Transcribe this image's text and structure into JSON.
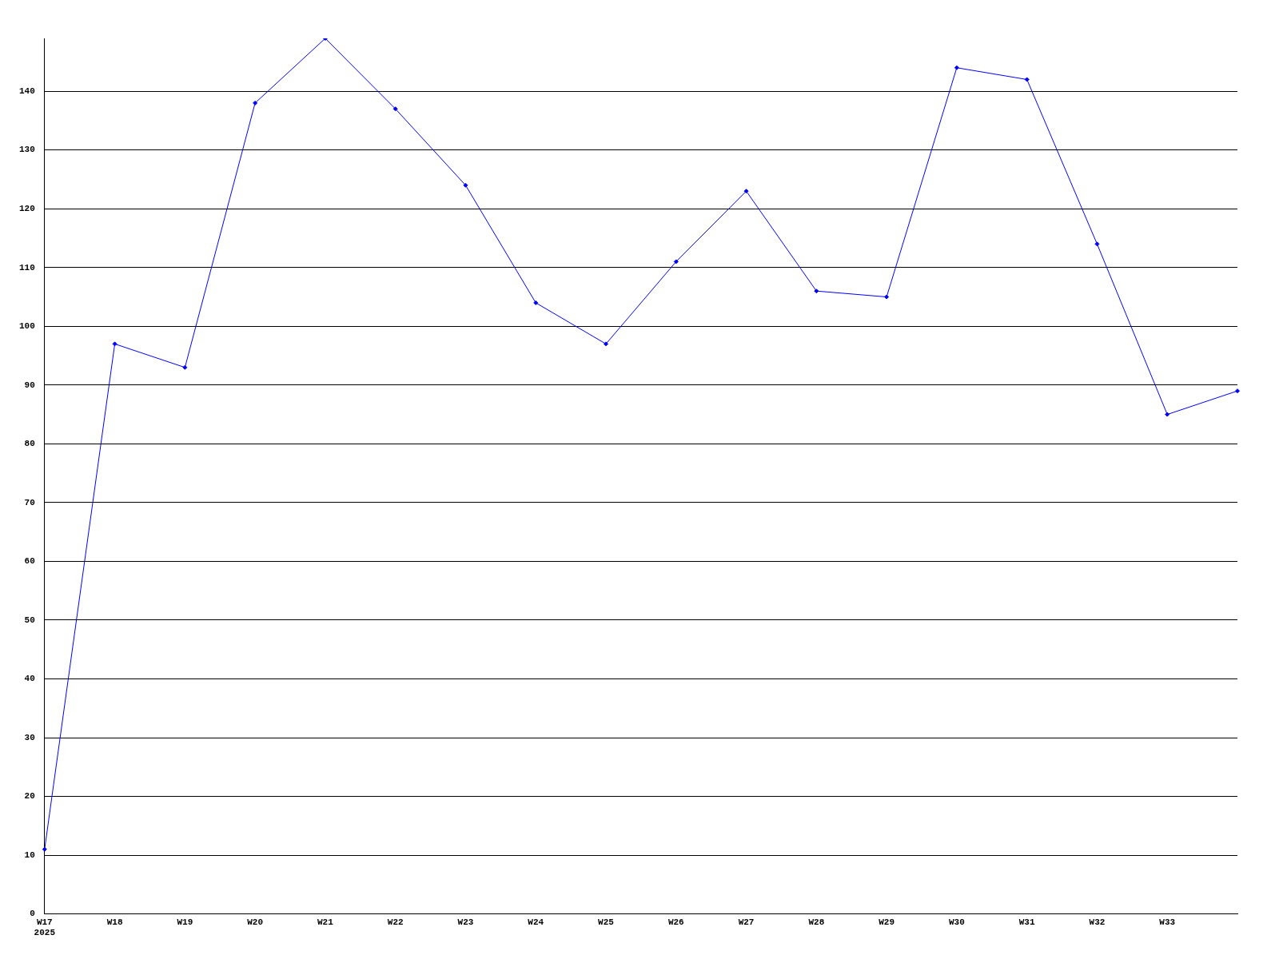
{
  "chart_data": {
    "type": "line",
    "categories": [
      "W17\n2025",
      "W18",
      "W19",
      "W20",
      "W21",
      "W22",
      "W23",
      "W24",
      "W25",
      "W26",
      "W27",
      "W28",
      "W29",
      "W30",
      "W31",
      "W32",
      "W33",
      null
    ],
    "series": [
      {
        "color": "#0000ff",
        "values": [
          11,
          97,
          93,
          138,
          149,
          137,
          124,
          104,
          97,
          111,
          123,
          106,
          105,
          144,
          142,
          114,
          85,
          89
        ]
      }
    ],
    "ylim": [
      0,
      149
    ],
    "yticks": [
      0,
      10,
      20,
      30,
      40,
      50,
      60,
      70,
      80,
      90,
      100,
      110,
      120,
      130,
      140
    ],
    "grid": "y",
    "legend": false,
    "marker": "diamond",
    "line_style": "solid"
  }
}
